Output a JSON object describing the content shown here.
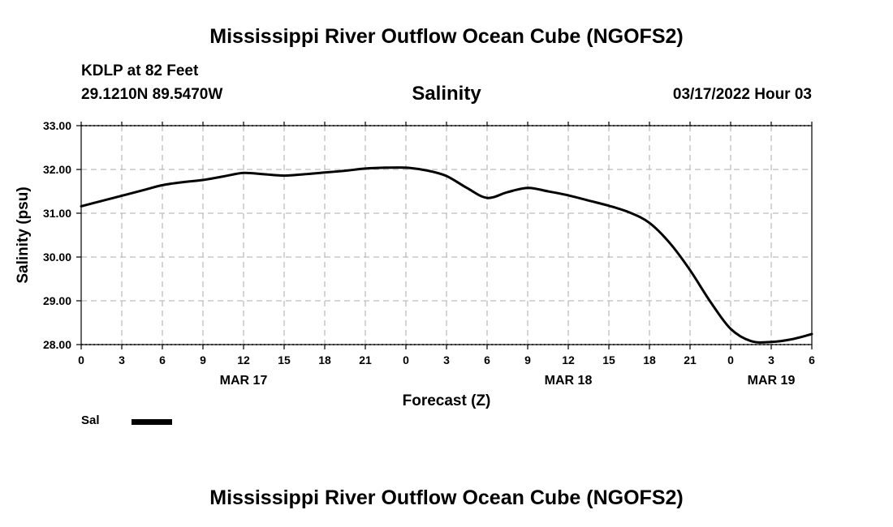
{
  "header": {
    "title": "Mississippi River Outflow Ocean Cube (NGOFS2)",
    "station": "KDLP at 82 Feet",
    "coords": "29.1210N  89.5470W",
    "timestamp": "03/17/2022 Hour 03"
  },
  "footer": {
    "title": "Mississippi River Outflow Ocean Cube (NGOFS2)"
  },
  "legend": {
    "label": "Sal",
    "color": "#000000"
  },
  "chart_data": {
    "type": "line",
    "title": "Salinity",
    "xlabel": "Forecast (Z)",
    "ylabel": "Salinity (psu)",
    "ylim": [
      28.0,
      33.0
    ],
    "yticks": [
      "28.00",
      "29.00",
      "30.00",
      "31.00",
      "32.00",
      "33.00"
    ],
    "xlim": [
      0,
      54
    ],
    "xtick_labels": [
      "0",
      "3",
      "6",
      "9",
      "12",
      "15",
      "18",
      "21",
      "0",
      "3",
      "6",
      "9",
      "12",
      "15",
      "18",
      "21",
      "0",
      "3",
      "6"
    ],
    "date_labels": [
      {
        "label": "MAR 17",
        "x_hour": 12
      },
      {
        "label": "MAR 18",
        "x_hour": 36
      },
      {
        "label": "MAR 19",
        "x_hour": 51
      }
    ],
    "grid": true,
    "series": [
      {
        "name": "Sal",
        "color": "#000000",
        "x": [
          0,
          1.5,
          3,
          4.5,
          6,
          7.5,
          9,
          10.5,
          12,
          13.5,
          15,
          16.5,
          18,
          19.5,
          21,
          22.5,
          24,
          25.5,
          27,
          28.5,
          30,
          31.5,
          33,
          34.5,
          36,
          37.5,
          39,
          40.5,
          42,
          43.5,
          45,
          46.5,
          48,
          49.5,
          51,
          52.5,
          54
        ],
        "y": [
          31.16,
          31.28,
          31.4,
          31.52,
          31.64,
          31.71,
          31.76,
          31.84,
          31.92,
          31.89,
          31.86,
          31.89,
          31.93,
          31.97,
          32.02,
          32.04,
          32.04,
          31.98,
          31.85,
          31.58,
          31.35,
          31.48,
          31.58,
          31.5,
          31.41,
          31.29,
          31.17,
          31.02,
          30.78,
          30.32,
          29.7,
          28.98,
          28.36,
          28.08,
          28.06,
          28.12,
          28.24
        ]
      }
    ]
  }
}
